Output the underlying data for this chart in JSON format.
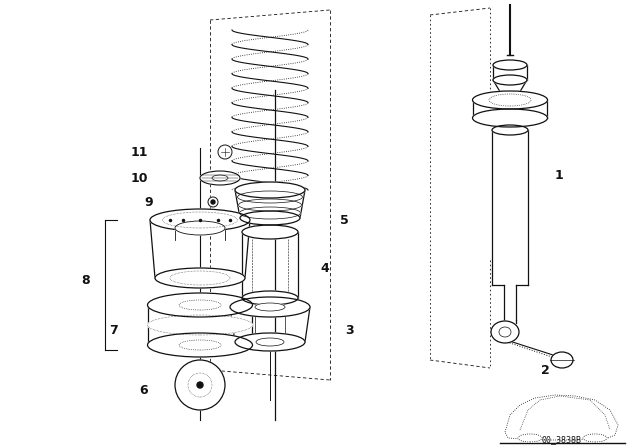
{
  "bg_color": "#ffffff",
  "line_color": "#111111",
  "diagram_number": "00_3838B",
  "figsize": [
    6.4,
    4.48
  ],
  "dpi": 100,
  "xlim": [
    0,
    640
  ],
  "ylim": [
    0,
    448
  ]
}
